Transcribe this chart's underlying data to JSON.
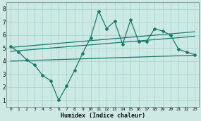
{
  "background_color": "#cce9e4",
  "grid_color": "#aad6d0",
  "line_color": "#1a7a6e",
  "xlabel": "Humidex (Indice chaleur)",
  "ylabel_ticks": [
    1,
    2,
    3,
    4,
    5,
    6,
    7,
    8
  ],
  "xticks": [
    0,
    1,
    2,
    3,
    4,
    5,
    6,
    7,
    8,
    9,
    10,
    11,
    12,
    13,
    14,
    15,
    16,
    17,
    18,
    19,
    20,
    21,
    22,
    23
  ],
  "xlim": [
    -0.5,
    23.5
  ],
  "ylim": [
    0.5,
    8.5
  ],
  "series_main": {
    "x": [
      0,
      1,
      2,
      3,
      4,
      5,
      6,
      7,
      8,
      9,
      10,
      11,
      12,
      13,
      14,
      15,
      16,
      17,
      18,
      19,
      20,
      21,
      22,
      23
    ],
    "y": [
      5.1,
      4.7,
      4.1,
      3.7,
      2.9,
      2.5,
      1.0,
      2.1,
      3.3,
      4.6,
      5.8,
      7.85,
      6.5,
      7.05,
      5.3,
      7.15,
      5.5,
      5.5,
      6.5,
      6.3,
      6.0,
      4.9,
      4.7,
      4.5
    ]
  },
  "series_line1": {
    "x": [
      0,
      23
    ],
    "y": [
      5.05,
      6.25
    ]
  },
  "series_line2": {
    "x": [
      0,
      23
    ],
    "y": [
      4.75,
      5.9
    ]
  },
  "series_line3": {
    "x": [
      0,
      23
    ],
    "y": [
      4.0,
      4.45
    ]
  }
}
